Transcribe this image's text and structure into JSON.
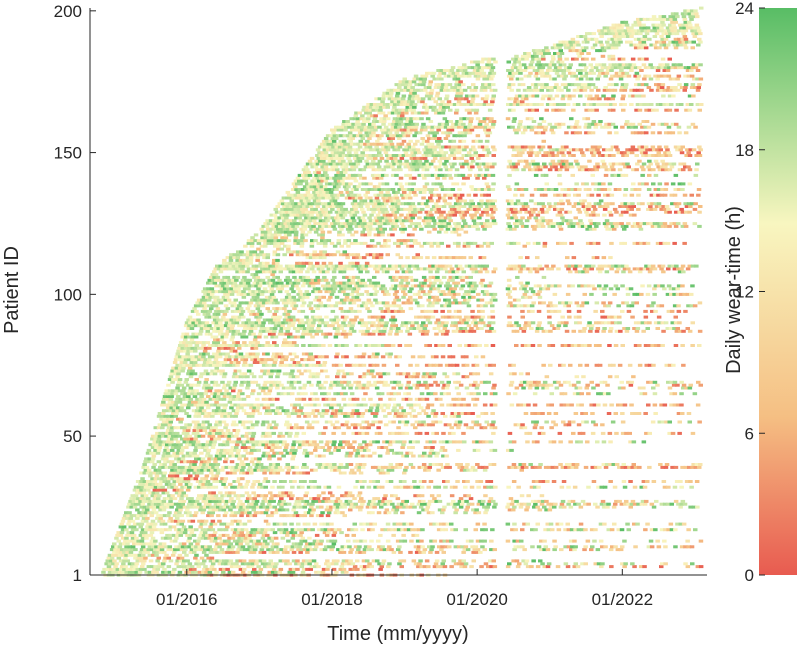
{
  "chart_data": {
    "type": "heatmap",
    "xlabel": "Time (mm/yyyy)",
    "ylabel": "Patient ID",
    "x_ticks": [
      "01/2016",
      "01/2018",
      "01/2020",
      "01/2022"
    ],
    "x_range": [
      "09/2014",
      "03/2023"
    ],
    "y_ticks": [
      "1",
      "50",
      "100",
      "150",
      "200"
    ],
    "ylim": [
      1,
      201
    ],
    "colorbar": {
      "label": "Daily wear-time (h)",
      "ticks": [
        "0",
        "6",
        "12",
        "18",
        "24"
      ],
      "range": [
        0,
        24
      ],
      "colors": [
        "#e85b50",
        "#f5bf83",
        "#f8f6c0",
        "#58bd65"
      ]
    },
    "enrollment_curve": {
      "description_points": [
        {
          "date": "11/2014",
          "patient": 1
        },
        {
          "date": "06/2015",
          "patient": 40
        },
        {
          "date": "01/2016",
          "patient": 90
        },
        {
          "date": "06/2016",
          "patient": 110
        },
        {
          "date": "01/2017",
          "patient": 122
        },
        {
          "date": "01/2018",
          "patient": 158
        },
        {
          "date": "01/2019",
          "patient": 176
        },
        {
          "date": "02/2020",
          "patient": 183
        },
        {
          "date": "06/2020",
          "patient": 183
        },
        {
          "date": "01/2022",
          "patient": 196
        },
        {
          "date": "02/2023",
          "patient": 201
        }
      ],
      "data_gap": [
        "04/2020",
        "06/2020"
      ]
    }
  }
}
